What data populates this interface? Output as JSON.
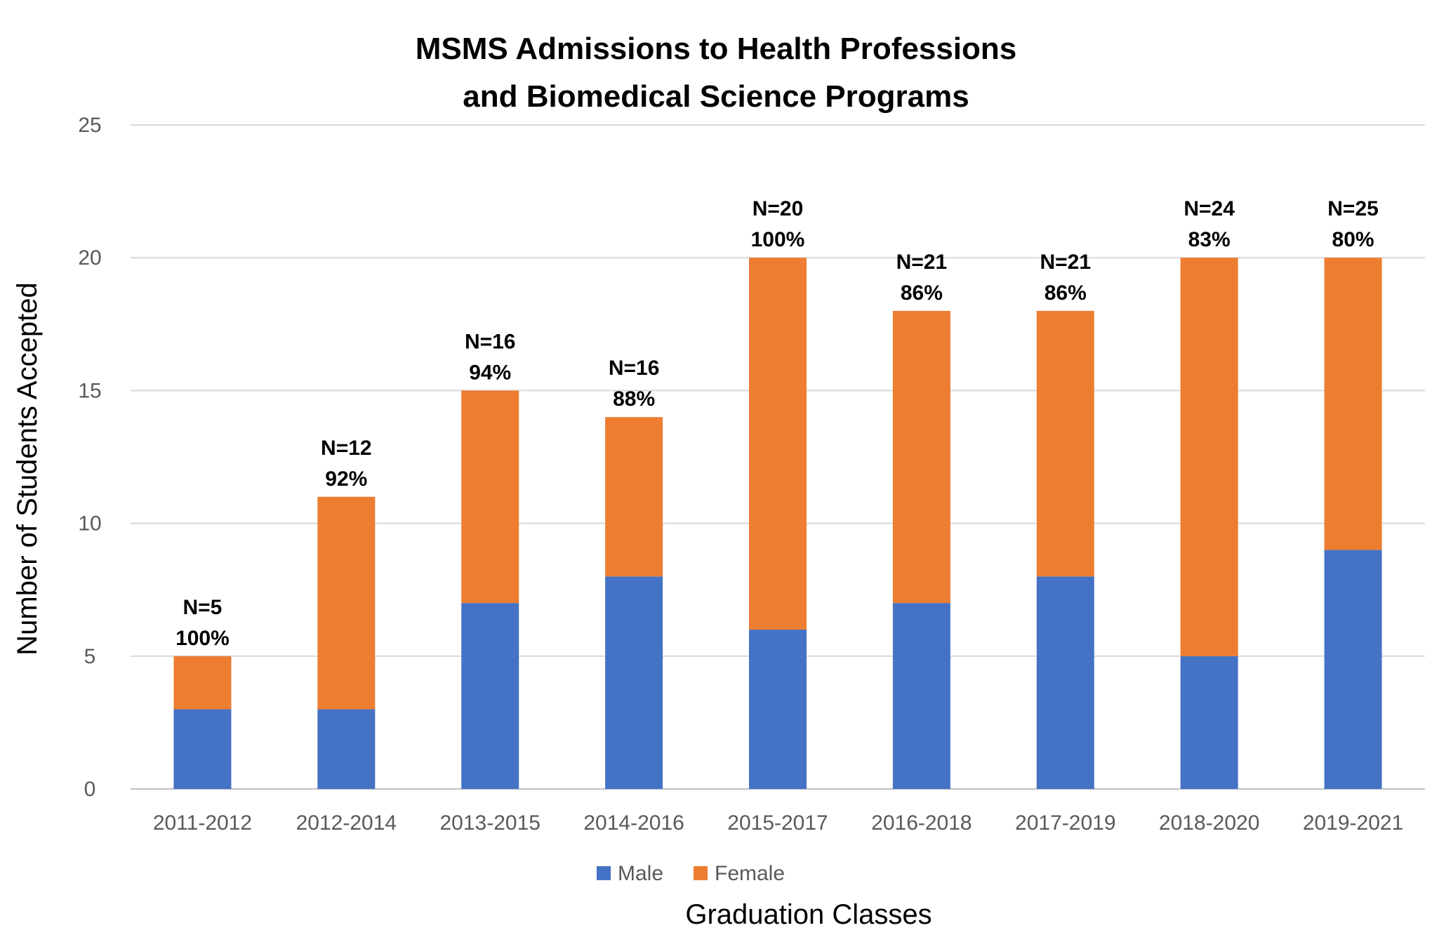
{
  "chart_data": {
    "type": "bar",
    "stacked": true,
    "title": [
      "MSMS Admissions to Health Professions",
      "and Biomedical Science Programs"
    ],
    "xlabel": "Graduation Classes",
    "ylabel": "Number of Students Accepted",
    "ylim": [
      0,
      25
    ],
    "yticks": [
      0,
      5,
      10,
      15,
      20,
      25
    ],
    "grid": true,
    "legend_position": "bottom",
    "categories": [
      "2011-2012",
      "2012-2014",
      "2013-2015",
      "2014-2016",
      "2015-2017",
      "2016-2018",
      "2017-2019",
      "2018-2020",
      "2019-2021"
    ],
    "series": [
      {
        "name": "Male",
        "color": "#4472C4",
        "values": [
          3,
          3,
          7,
          8,
          6,
          7,
          8,
          5,
          9
        ]
      },
      {
        "name": "Female",
        "color": "#ED7D31",
        "values": [
          2,
          8,
          8,
          6,
          14,
          11,
          10,
          15,
          11
        ]
      }
    ],
    "annotations": [
      {
        "n": "N=5",
        "pct": "100%"
      },
      {
        "n": "N=12",
        "pct": "92%"
      },
      {
        "n": "N=16",
        "pct": "94%"
      },
      {
        "n": "N=16",
        "pct": "88%"
      },
      {
        "n": "N=20",
        "pct": "100%"
      },
      {
        "n": "N=21",
        "pct": "86%"
      },
      {
        "n": "N=21",
        "pct": "86%"
      },
      {
        "n": "N=24",
        "pct": "83%"
      },
      {
        "n": "N=25",
        "pct": "80%"
      }
    ],
    "gridline_color": "#D9D9D9",
    "axis_line_color": "#BFBFBF"
  }
}
